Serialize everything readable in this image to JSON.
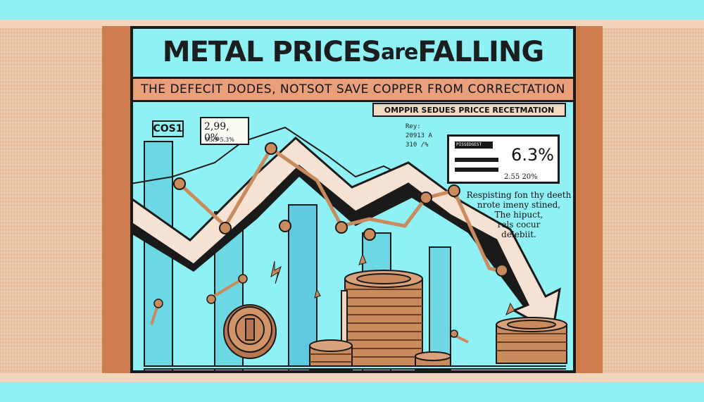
{
  "poster": {
    "headline_main": "METAL PRICES ",
    "headline_are": "are",
    "headline_end": " FALLING",
    "subtitle": "THE DEFECIT DODES, NOTSOT SAVE COPPER FROM CORRECTATION",
    "tag": "OMPPIR SEDUES PRICCE RECETMATION",
    "cost_label": "COS1",
    "mini_card": {
      "value_1": "2,99, 0%",
      "value_2": "93.9 5.3%"
    },
    "note_top": [
      "Rey:",
      "20913 A",
      "310 /%"
    ],
    "stat_card": {
      "header": "PISSEDGEST",
      "big_value": "6.3%",
      "small_value": "2.55 20%"
    },
    "side_note": [
      "Respisting fon thy deeth",
      "nrote imeny stined,",
      "The hipuct,",
      "rels cocur",
      "delebiit."
    ]
  },
  "colors": {
    "background": "#8ef0f2",
    "frame_orange": "#cf7d4e",
    "side_beige": "#e9c3a4",
    "coin_copper": "#c98a5e",
    "arrow_fill": "#f6e2d2",
    "line_dark": "#1a1a1a"
  }
}
